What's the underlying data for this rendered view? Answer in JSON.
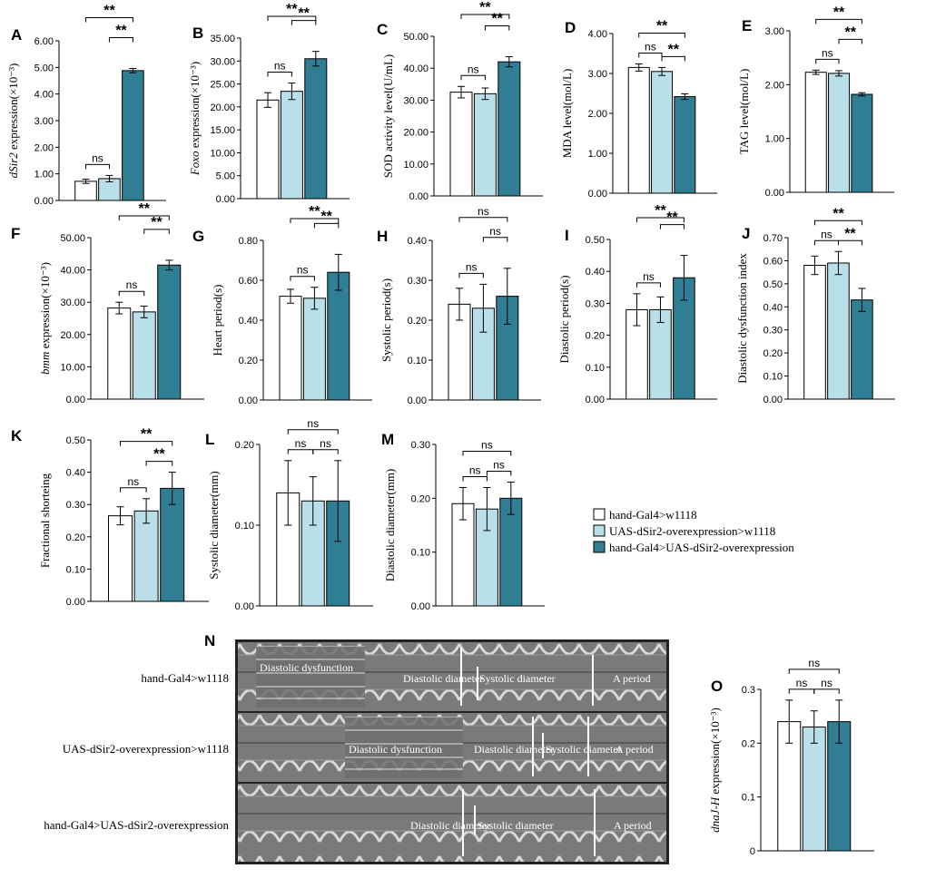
{
  "colors": {
    "control1": "#ffffff",
    "control2": "#b9dfe8",
    "overexpression": "#2f7e93",
    "stroke": "#000000"
  },
  "legend": [
    {
      "label": "hand-Gal4>w1118",
      "color_key": "control1"
    },
    {
      "label": "UAS-dSir2-overexpression>w1118",
      "color_key": "control2"
    },
    {
      "label": "hand-Gal4>UAS-dSir2-overexpression",
      "color_key": "overexpression"
    }
  ],
  "chart_data": [
    {
      "id": "A",
      "type": "bar",
      "ylabel_italic": "dSir2",
      "ylabel_rest": " expression(×10⁻³)",
      "yticks": [
        "0.00",
        "1.00",
        "2.00",
        "3.00",
        "4.00",
        "5.00",
        "6.00"
      ],
      "ylim": [
        0,
        6
      ],
      "values": [
        0.72,
        0.82,
        4.88
      ],
      "errors": [
        0.08,
        0.12,
        0.08
      ],
      "sig": [
        {
          "from": 0,
          "to": 1,
          "label": "ns",
          "tier": 0
        },
        {
          "from": 1,
          "to": 2,
          "label": "**",
          "tier": 1
        },
        {
          "from": 0,
          "to": 2,
          "label": "**",
          "tier": 2
        }
      ]
    },
    {
      "id": "B",
      "type": "bar",
      "ylabel_italic": "Foxo",
      "ylabel_rest": " expression(×10⁻³)",
      "yticks": [
        "0.00",
        "5.00",
        "10.00",
        "15.00",
        "20.00",
        "25.00",
        "30.00",
        "35.00"
      ],
      "ylim": [
        0,
        35
      ],
      "values": [
        21.5,
        23.4,
        30.5
      ],
      "errors": [
        1.6,
        1.8,
        1.6
      ],
      "sig": [
        {
          "from": 0,
          "to": 1,
          "label": "ns",
          "tier": 0
        },
        {
          "from": 1,
          "to": 2,
          "label": "**",
          "tier": 1
        },
        {
          "from": 0,
          "to": 2,
          "label": "**",
          "tier": 2
        }
      ]
    },
    {
      "id": "C",
      "type": "bar",
      "ylabel_italic": "",
      "ylabel_rest": "SOD activity level(U/mL)",
      "yticks": [
        "0.00",
        "10.00",
        "20.00",
        "30.00",
        "40.00",
        "50.00"
      ],
      "ylim": [
        0,
        50
      ],
      "values": [
        32.5,
        32.0,
        42.0
      ],
      "errors": [
        1.8,
        1.8,
        1.6
      ],
      "sig": [
        {
          "from": 0,
          "to": 1,
          "label": "ns",
          "tier": 0
        },
        {
          "from": 1,
          "to": 2,
          "label": "**",
          "tier": 1
        },
        {
          "from": 0,
          "to": 2,
          "label": "**",
          "tier": 2
        }
      ]
    },
    {
      "id": "D",
      "type": "bar",
      "ylabel_italic": "",
      "ylabel_rest": "MDA level(mol/L)",
      "yticks": [
        "0.00",
        "1.00",
        "2.00",
        "3.00",
        "4.00"
      ],
      "ylim": [
        0,
        4
      ],
      "values": [
        3.15,
        3.05,
        2.42
      ],
      "errors": [
        0.09,
        0.1,
        0.07
      ],
      "sig": [
        {
          "from": 0,
          "to": 1,
          "label": "ns",
          "tier": 0
        },
        {
          "from": 1,
          "to": 2,
          "label": "**",
          "tier": 0
        },
        {
          "from": 0,
          "to": 2,
          "label": "**",
          "tier": 1
        }
      ]
    },
    {
      "id": "E",
      "type": "bar",
      "ylabel_italic": "",
      "ylabel_rest": "TAG level(mol/L)",
      "yticks": [
        "0.00",
        "1.00",
        "2.00",
        "3.00"
      ],
      "ylim": [
        0,
        3
      ],
      "values": [
        2.23,
        2.21,
        1.82
      ],
      "errors": [
        0.04,
        0.05,
        0.03
      ],
      "sig": [
        {
          "from": 0,
          "to": 1,
          "label": "ns",
          "tier": 0
        },
        {
          "from": 1,
          "to": 2,
          "label": "**",
          "tier": 1
        },
        {
          "from": 0,
          "to": 2,
          "label": "**",
          "tier": 2
        }
      ]
    },
    {
      "id": "F",
      "type": "bar",
      "ylabel_italic": "bmm",
      "ylabel_rest": " expression(×10⁻³)",
      "yticks": [
        "0.00",
        "10.00",
        "20.00",
        "30.00",
        "40.00",
        "50.00"
      ],
      "ylim": [
        0,
        50
      ],
      "values": [
        28.2,
        27.0,
        41.5
      ],
      "errors": [
        1.8,
        1.8,
        1.5
      ],
      "sig": [
        {
          "from": 0,
          "to": 1,
          "label": "ns",
          "tier": 0
        },
        {
          "from": 1,
          "to": 2,
          "label": "**",
          "tier": 1
        },
        {
          "from": 0,
          "to": 2,
          "label": "**",
          "tier": 2
        }
      ]
    },
    {
      "id": "G",
      "type": "bar",
      "ylabel_italic": "",
      "ylabel_rest": "Heart period(s)",
      "yticks": [
        "0.00",
        "0.20",
        "0.40",
        "0.60",
        "0.80"
      ],
      "ylim": [
        0,
        0.8
      ],
      "values": [
        0.52,
        0.51,
        0.64
      ],
      "errors": [
        0.035,
        0.055,
        0.09
      ],
      "sig": [
        {
          "from": 0,
          "to": 1,
          "label": "ns",
          "tier": 0
        },
        {
          "from": 1,
          "to": 2,
          "label": "**",
          "tier": 1
        },
        {
          "from": 0,
          "to": 2,
          "label": "**",
          "tier": 2
        }
      ]
    },
    {
      "id": "H",
      "type": "bar",
      "ylabel_italic": "",
      "ylabel_rest": "Systolic period(s)",
      "yticks": [
        "0.00",
        "0.10",
        "0.20",
        "0.30",
        "0.40"
      ],
      "ylim": [
        0,
        0.4
      ],
      "values": [
        0.24,
        0.23,
        0.26
      ],
      "errors": [
        0.04,
        0.06,
        0.07
      ],
      "sig": [
        {
          "from": 0,
          "to": 1,
          "label": "ns",
          "tier": 0
        },
        {
          "from": 1,
          "to": 2,
          "label": "ns",
          "tier": 1
        },
        {
          "from": 0,
          "to": 2,
          "label": "ns",
          "tier": 2
        }
      ]
    },
    {
      "id": "I",
      "type": "bar",
      "ylabel_italic": "",
      "ylabel_rest": "Diastolic period(s)",
      "yticks": [
        "0.00",
        "0.10",
        "0.20",
        "0.30",
        "0.40",
        "0.50"
      ],
      "ylim": [
        0,
        0.5
      ],
      "values": [
        0.28,
        0.28,
        0.38
      ],
      "errors": [
        0.05,
        0.04,
        0.07
      ],
      "sig": [
        {
          "from": 0,
          "to": 1,
          "label": "ns",
          "tier": 0
        },
        {
          "from": 1,
          "to": 2,
          "label": "**",
          "tier": 1
        },
        {
          "from": 0,
          "to": 2,
          "label": "**",
          "tier": 2
        }
      ]
    },
    {
      "id": "J",
      "type": "bar",
      "ylabel_italic": "",
      "ylabel_rest": "Diastolic dysfunction index",
      "yticks": [
        "0.00",
        "0.10",
        "0.20",
        "0.30",
        "0.40",
        "0.50",
        "0.60",
        "0.70"
      ],
      "ylim": [
        0,
        0.7
      ],
      "values": [
        0.58,
        0.59,
        0.43
      ],
      "errors": [
        0.04,
        0.05,
        0.05
      ],
      "sig": [
        {
          "from": 0,
          "to": 1,
          "label": "ns",
          "tier": 0
        },
        {
          "from": 1,
          "to": 2,
          "label": "**",
          "tier": 0
        },
        {
          "from": 0,
          "to": 2,
          "label": "**",
          "tier": 1
        }
      ]
    },
    {
      "id": "K",
      "type": "bar",
      "ylabel_italic": "",
      "ylabel_rest": "Fractional shorteing",
      "yticks": [
        "0.00",
        "0.10",
        "0.20",
        "0.30",
        "0.40",
        "0.50"
      ],
      "ylim": [
        0,
        0.5
      ],
      "values": [
        0.265,
        0.28,
        0.35
      ],
      "errors": [
        0.028,
        0.038,
        0.05
      ],
      "sig": [
        {
          "from": 0,
          "to": 1,
          "label": "ns",
          "tier": 0
        },
        {
          "from": 1,
          "to": 2,
          "label": "**",
          "tier": 0
        },
        {
          "from": 0,
          "to": 2,
          "label": "**",
          "tier": 1
        }
      ]
    },
    {
      "id": "L",
      "type": "bar",
      "ylabel_italic": "",
      "ylabel_rest": "Systolic diameter(mm)",
      "yticks": [
        "0.00",
        "0.10",
        "0.20"
      ],
      "ylim": [
        0,
        0.2
      ],
      "values": [
        0.14,
        0.13,
        0.13
      ],
      "errors": [
        0.04,
        0.03,
        0.05
      ],
      "sig": [
        {
          "from": 0,
          "to": 1,
          "label": "ns",
          "tier": 0
        },
        {
          "from": 1,
          "to": 2,
          "label": "ns",
          "tier": 0
        },
        {
          "from": 0,
          "to": 2,
          "label": "ns",
          "tier": 1
        }
      ]
    },
    {
      "id": "M",
      "type": "bar",
      "ylabel_italic": "",
      "ylabel_rest": "Diastolic diameter(mm)",
      "yticks": [
        "0.00",
        "0.10",
        "0.20",
        "0.30"
      ],
      "ylim": [
        0,
        0.3
      ],
      "values": [
        0.19,
        0.18,
        0.2
      ],
      "errors": [
        0.03,
        0.04,
        0.03
      ],
      "sig": [
        {
          "from": 0,
          "to": 1,
          "label": "ns",
          "tier": 0
        },
        {
          "from": 1,
          "to": 2,
          "label": "ns",
          "tier": 0
        },
        {
          "from": 0,
          "to": 2,
          "label": "ns",
          "tier": 1
        }
      ]
    },
    {
      "id": "O",
      "type": "bar",
      "ylabel_italic": "dnaJ-H",
      "ylabel_rest": " expression(×10⁻³)",
      "yticks": [
        "0",
        "0.1",
        "0.2",
        "0.3"
      ],
      "ylim": [
        0,
        0.3
      ],
      "values": [
        0.24,
        0.23,
        0.24
      ],
      "errors": [
        0.04,
        0.03,
        0.04
      ],
      "sig": [
        {
          "from": 0,
          "to": 1,
          "label": "ns",
          "tier": 0
        },
        {
          "from": 1,
          "to": 2,
          "label": "ns",
          "tier": 0
        },
        {
          "from": 0,
          "to": 2,
          "label": "ns",
          "tier": 1
        }
      ]
    }
  ],
  "panel_n": {
    "letter": "N",
    "rows": [
      {
        "group": "hand-Gal4>w1118",
        "annotations": [
          "Diastolic dysfunction",
          "Diastolic diameter",
          "Systolic diameter",
          "A period"
        ]
      },
      {
        "group": "UAS-dSir2-overexpression>w1118",
        "annotations": [
          "Diastolic dysfunction",
          "Diastolic diameter",
          "Systolic diameter",
          "A period"
        ]
      },
      {
        "group": "hand-Gal4>UAS-dSir2-overexpression",
        "annotations": [
          "Diastolic diameter",
          "Systolic diameter",
          "A period"
        ]
      }
    ]
  }
}
